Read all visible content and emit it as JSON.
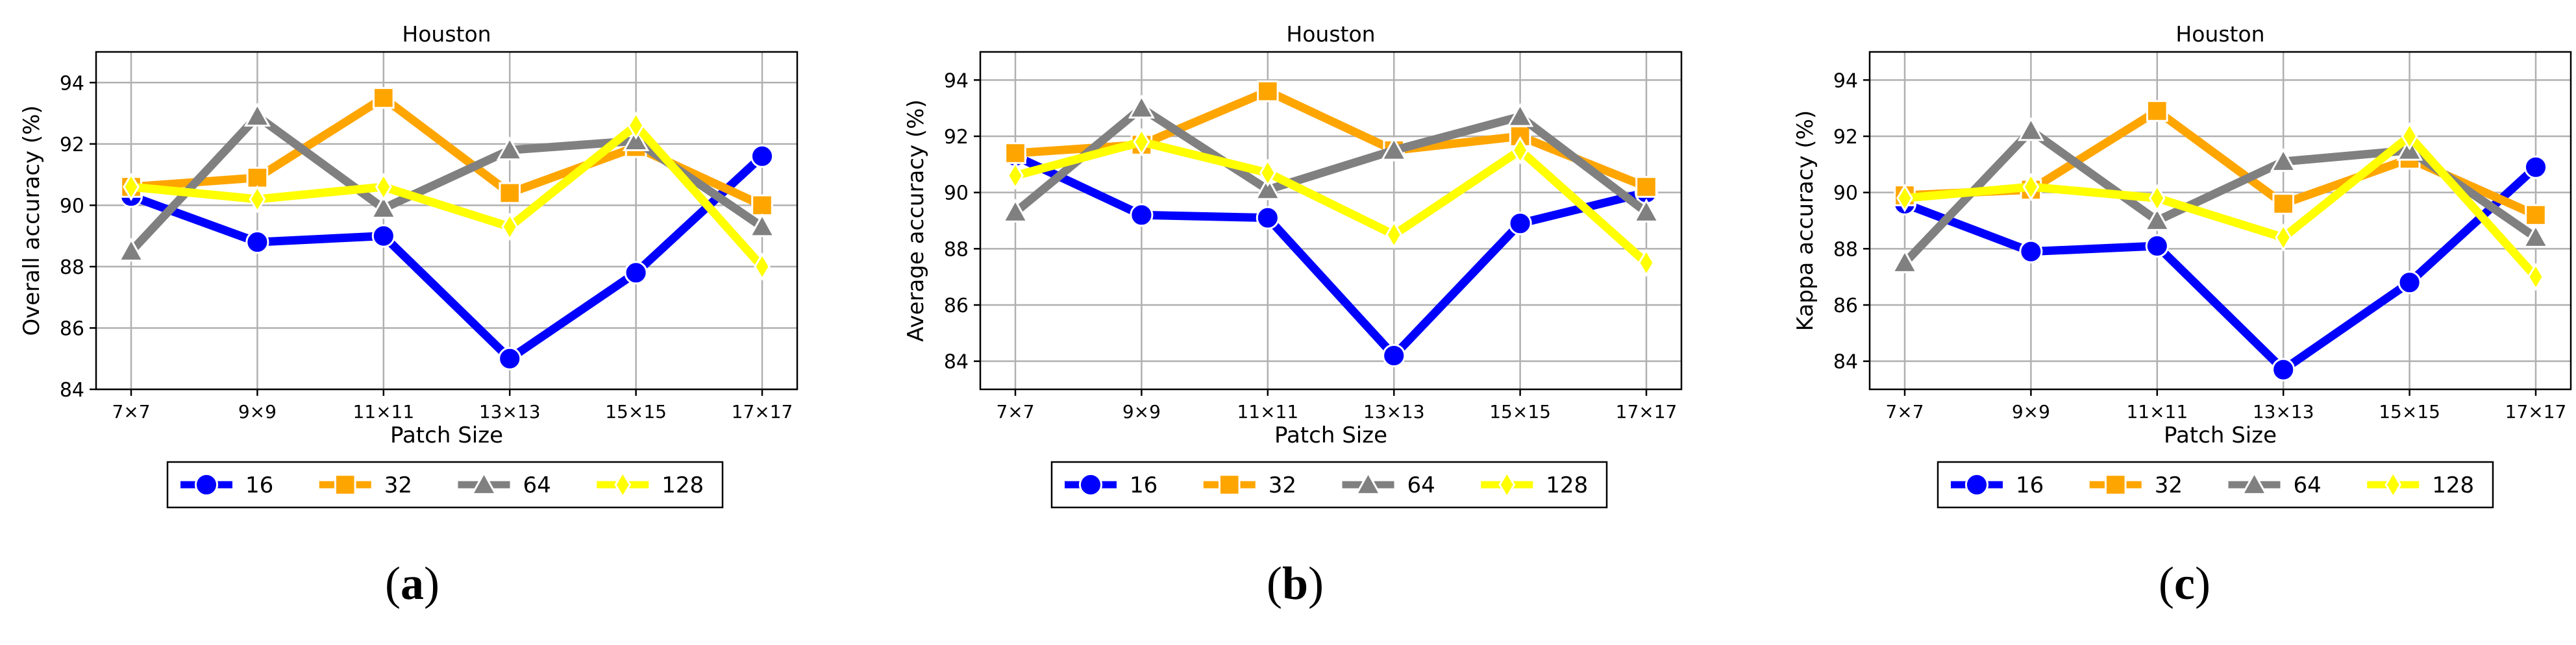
{
  "chart_data": [
    {
      "type": "line",
      "title": "Houston",
      "xlabel": "Patch Size",
      "ylabel": "Overall accuracy (%)",
      "categories": [
        "7×7",
        "9×9",
        "11×11",
        "13×13",
        "15×15",
        "17×17"
      ],
      "ylim": [
        84,
        95
      ],
      "yticks": [
        84,
        86,
        88,
        90,
        92,
        94
      ],
      "grid": true,
      "legend": "bottom-center",
      "series": [
        {
          "name": "16",
          "color": "#0000ff",
          "marker": "circle",
          "values": [
            90.3,
            88.8,
            89.0,
            85.0,
            87.8,
            91.6
          ]
        },
        {
          "name": "32",
          "color": "#ffa500",
          "marker": "square",
          "values": [
            90.6,
            90.9,
            93.5,
            90.4,
            91.9,
            90.0
          ]
        },
        {
          "name": "64",
          "color": "#808080",
          "marker": "triangle",
          "values": [
            88.5,
            92.9,
            89.9,
            91.8,
            92.1,
            89.3
          ]
        },
        {
          "name": "128",
          "color": "#ffff00",
          "marker": "diamond",
          "values": [
            90.6,
            90.2,
            90.6,
            89.3,
            92.6,
            88.0
          ]
        }
      ],
      "panel_label": "(a)"
    },
    {
      "type": "line",
      "title": "Houston",
      "xlabel": "Patch Size",
      "ylabel": "Average accuracy (%)",
      "categories": [
        "7×7",
        "9×9",
        "11×11",
        "13×13",
        "15×15",
        "17×17"
      ],
      "ylim": [
        83,
        95
      ],
      "yticks": [
        84,
        86,
        88,
        90,
        92,
        94
      ],
      "grid": true,
      "legend": "bottom-center",
      "series": [
        {
          "name": "16",
          "color": "#0000ff",
          "marker": "circle",
          "values": [
            91.3,
            89.2,
            89.1,
            84.2,
            88.9,
            90.0
          ]
        },
        {
          "name": "32",
          "color": "#ffa500",
          "marker": "square",
          "values": [
            91.4,
            91.7,
            93.6,
            91.5,
            92.0,
            90.2
          ]
        },
        {
          "name": "64",
          "color": "#808080",
          "marker": "triangle",
          "values": [
            89.3,
            93.0,
            90.1,
            91.5,
            92.7,
            89.3
          ]
        },
        {
          "name": "128",
          "color": "#ffff00",
          "marker": "diamond",
          "values": [
            90.6,
            91.8,
            90.7,
            88.5,
            91.5,
            87.5
          ]
        }
      ],
      "panel_label": "(b)"
    },
    {
      "type": "line",
      "title": "Houston",
      "xlabel": "Patch Size",
      "ylabel": "Kappa accuracy (%)",
      "categories": [
        "7×7",
        "9×9",
        "11×11",
        "13×13",
        "15×15",
        "17×17"
      ],
      "ylim": [
        83,
        95
      ],
      "yticks": [
        84,
        86,
        88,
        90,
        92,
        94
      ],
      "grid": true,
      "legend": "bottom-center",
      "series": [
        {
          "name": "16",
          "color": "#0000ff",
          "marker": "circle",
          "values": [
            89.6,
            87.9,
            88.1,
            83.7,
            86.8,
            90.9
          ]
        },
        {
          "name": "32",
          "color": "#ffa500",
          "marker": "square",
          "values": [
            89.9,
            90.1,
            92.9,
            89.6,
            91.2,
            89.2
          ]
        },
        {
          "name": "64",
          "color": "#808080",
          "marker": "triangle",
          "values": [
            87.5,
            92.2,
            89.0,
            91.1,
            91.5,
            88.4
          ]
        },
        {
          "name": "128",
          "color": "#ffff00",
          "marker": "diamond",
          "values": [
            89.8,
            90.2,
            89.8,
            88.4,
            92.0,
            87.0
          ]
        }
      ],
      "panel_label": "(c)"
    }
  ]
}
